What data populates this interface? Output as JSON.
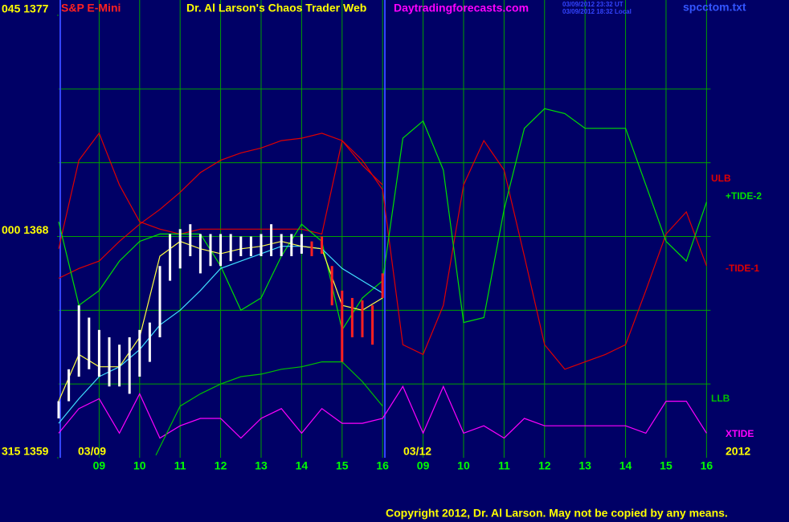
{
  "chart_data": {
    "type": "line",
    "symbol": "S&P E-Mini",
    "title": "Dr. Al Larson's Chaos Trader Web",
    "site": "Daytradingforecasts.com",
    "timestamps": [
      "03/09/2012 23:32 UT",
      "03/09/2012 18:32 Local"
    ],
    "file": "spcctom.txt",
    "copyright": "Copyright 2012, Dr. Al Larson. May not be copied by any means.",
    "date_labels": [
      "03/09",
      "03/12",
      "2012"
    ],
    "xlim": [
      0,
      16.1
    ],
    "ylim": [
      1359,
      1377
    ],
    "xticks": [
      {
        "value": 1,
        "label": "09"
      },
      {
        "value": 2,
        "label": "10"
      },
      {
        "value": 3,
        "label": "11"
      },
      {
        "value": 4,
        "label": "12"
      },
      {
        "value": 5,
        "label": "13"
      },
      {
        "value": 6,
        "label": "14"
      },
      {
        "value": 7,
        "label": "15"
      },
      {
        "value": 8,
        "label": "16"
      },
      {
        "value": 9,
        "label": "09"
      },
      {
        "value": 10,
        "label": "10"
      },
      {
        "value": 11,
        "label": "11"
      },
      {
        "value": 12,
        "label": "12"
      },
      {
        "value": 13,
        "label": "13"
      },
      {
        "value": 14,
        "label": "14"
      },
      {
        "value": 15,
        "label": "15"
      },
      {
        "value": 16,
        "label": "16"
      }
    ],
    "yticks": [
      {
        "value": 1377,
        "label": "045 1377"
      },
      {
        "value": 1368,
        "label": "000 1368"
      },
      {
        "value": 1359,
        "label": "315 1359"
      }
    ],
    "ygrid": [
      1362,
      1365,
      1368,
      1371,
      1374
    ],
    "grid": true,
    "series": [
      {
        "name": "XTIDE",
        "color": "#ff00ff",
        "x": [
          0,
          0.5,
          1,
          1.5,
          2,
          2.5,
          3,
          3.5,
          4,
          4.5,
          5,
          5.5,
          6,
          6.5,
          7,
          7.5,
          8,
          8.5,
          9,
          9.5,
          10,
          10.5,
          11,
          11.5,
          12,
          12.5,
          13,
          13.5,
          14,
          14.5,
          15,
          15.5,
          16
        ],
        "values": [
          1360.0,
          1361.0,
          1361.4,
          1360.0,
          1361.6,
          1359.8,
          1360.3,
          1360.6,
          1360.6,
          1359.8,
          1360.6,
          1361.0,
          1360.0,
          1361.0,
          1360.4,
          1360.4,
          1360.6,
          1361.9,
          1360.0,
          1361.9,
          1360.0,
          1360.3,
          1359.8,
          1360.6,
          1360.3,
          1360.3,
          1360.3,
          1360.3,
          1360.3,
          1360.0,
          1361.3,
          1361.3,
          1360.0
        ]
      },
      {
        "name": "LLB",
        "color": "#00c000",
        "x": [
          2.4,
          3,
          3.5,
          4,
          4.5,
          5,
          5.5,
          6,
          6.5,
          7,
          7.5,
          8
        ],
        "values": [
          1359.1,
          1361.1,
          1361.6,
          1362.0,
          1362.3,
          1362.4,
          1362.6,
          1362.7,
          1362.9,
          1362.9,
          1362.1,
          1361.1
        ]
      },
      {
        "name": "ULB",
        "color": "#e00000",
        "x": [
          0,
          0.5,
          1,
          1.5,
          2,
          2.5,
          3,
          3.5,
          4,
          4.5,
          5,
          5.5,
          6,
          6.5,
          7,
          7.5,
          8
        ],
        "values": [
          1366.3,
          1366.7,
          1367.0,
          1367.8,
          1368.5,
          1369.1,
          1369.8,
          1370.6,
          1371.1,
          1371.4,
          1371.6,
          1371.9,
          1372.0,
          1372.2,
          1371.9,
          1370.9,
          1370.1
        ]
      },
      {
        "name": "-TIDE-1",
        "color": "#e00000",
        "x": [
          0,
          0.5,
          1,
          1.5,
          2,
          2.5,
          3,
          3.5,
          4,
          4.5,
          5,
          5.5,
          6,
          6.5,
          7,
          7.5,
          8,
          8.5,
          9,
          9.5,
          10,
          10.5,
          11,
          11.5,
          12,
          12.5,
          13,
          13.5,
          14,
          14.5,
          15,
          15.5,
          16
        ],
        "values": [
          1367.5,
          1371.1,
          1372.2,
          1370.1,
          1368.6,
          1368.3,
          1368.1,
          1368.3,
          1368.3,
          1368.3,
          1368.3,
          1368.3,
          1368.3,
          1368.1,
          1371.9,
          1371.1,
          1369.9,
          1363.6,
          1363.2,
          1365.2,
          1370.1,
          1371.9,
          1370.7,
          1367.2,
          1363.6,
          1362.6,
          1362.9,
          1363.2,
          1363.6,
          1365.8,
          1368.1,
          1369.0,
          1366.8
        ]
      },
      {
        "name": "+TIDE-2",
        "color": "#00e000",
        "x": [
          0,
          0.5,
          1,
          1.5,
          2,
          2.5,
          3,
          3.5,
          4,
          4.5,
          5,
          5.5,
          6,
          6.5,
          7,
          7.5,
          8,
          8.5,
          9,
          9.5,
          10,
          10.5,
          11,
          11.5,
          12,
          12.5,
          13,
          13.5,
          14,
          14.5,
          15,
          15.5,
          16
        ],
        "values": [
          1368.6,
          1365.2,
          1365.8,
          1367.0,
          1367.8,
          1368.1,
          1368.1,
          1368.1,
          1366.8,
          1365.0,
          1365.5,
          1367.2,
          1368.5,
          1367.8,
          1364.2,
          1365.5,
          1366.2,
          1372.0,
          1372.7,
          1370.7,
          1364.5,
          1364.7,
          1369.1,
          1372.4,
          1373.2,
          1373.0,
          1372.4,
          1372.4,
          1372.4,
          1370.1,
          1367.8,
          1367.0,
          1369.4
        ]
      },
      {
        "color": "#40e0ff",
        "x": [
          0,
          0.5,
          1,
          1.5,
          2,
          2.5,
          3,
          3.5,
          4,
          4.5,
          5,
          5.5,
          6,
          6.5,
          7,
          7.5,
          8
        ],
        "values": [
          1360.4,
          1361.4,
          1362.3,
          1362.7,
          1363.4,
          1364.4,
          1365.0,
          1365.8,
          1366.7,
          1367.0,
          1367.3,
          1367.6,
          1367.6,
          1367.5,
          1366.7,
          1366.2,
          1365.7
        ]
      },
      {
        "color": "#ffff40",
        "x": [
          0,
          0.5,
          1,
          1.5,
          2,
          2.5,
          3,
          3.5,
          4,
          4.5,
          5,
          5.5,
          6,
          6.5,
          7,
          7.5,
          8
        ],
        "values": [
          1361.3,
          1363.2,
          1362.7,
          1362.7,
          1363.9,
          1367.2,
          1367.8,
          1367.5,
          1367.3,
          1367.5,
          1367.6,
          1367.8,
          1367.6,
          1367.5,
          1365.2,
          1365.0,
          1365.5
        ]
      }
    ],
    "bars": [
      {
        "color": "#ffffff",
        "x": [
          0,
          0.25,
          0.5,
          0.75,
          1,
          1.25,
          1.5,
          1.75,
          2,
          2.25,
          2.5,
          2.75,
          3,
          3.25,
          3.5,
          3.75,
          4,
          4.25,
          4.5,
          4.75,
          5,
          5.25,
          5.5,
          5.75,
          6
        ],
        "high": [
          1361.3,
          1362.6,
          1365.2,
          1364.7,
          1364.2,
          1363.9,
          1363.6,
          1363.9,
          1364.2,
          1364.5,
          1366.8,
          1368.1,
          1368.3,
          1368.5,
          1368.1,
          1368.1,
          1368.1,
          1368.1,
          1368.0,
          1368.0,
          1368.1,
          1368.5,
          1368.1,
          1368.1,
          1368.1
        ],
        "low": [
          1360.6,
          1361.3,
          1362.3,
          1362.6,
          1362.3,
          1361.9,
          1361.9,
          1361.6,
          1362.3,
          1362.9,
          1363.9,
          1366.2,
          1366.7,
          1367.2,
          1366.5,
          1366.8,
          1366.8,
          1367.0,
          1367.2,
          1367.2,
          1367.2,
          1367.2,
          1367.2,
          1367.2,
          1367.3
        ]
      },
      {
        "color": "#ff2020",
        "x": [
          6.25,
          6.5,
          6.75,
          7,
          7.25,
          7.5,
          7.75,
          8
        ],
        "high": [
          1367.8,
          1368.0,
          1366.8,
          1365.8,
          1365.5,
          1365.4,
          1365.2,
          1366.5
        ],
        "low": [
          1367.2,
          1367.3,
          1365.2,
          1362.9,
          1363.9,
          1363.9,
          1363.6,
          1365.5
        ]
      }
    ]
  }
}
